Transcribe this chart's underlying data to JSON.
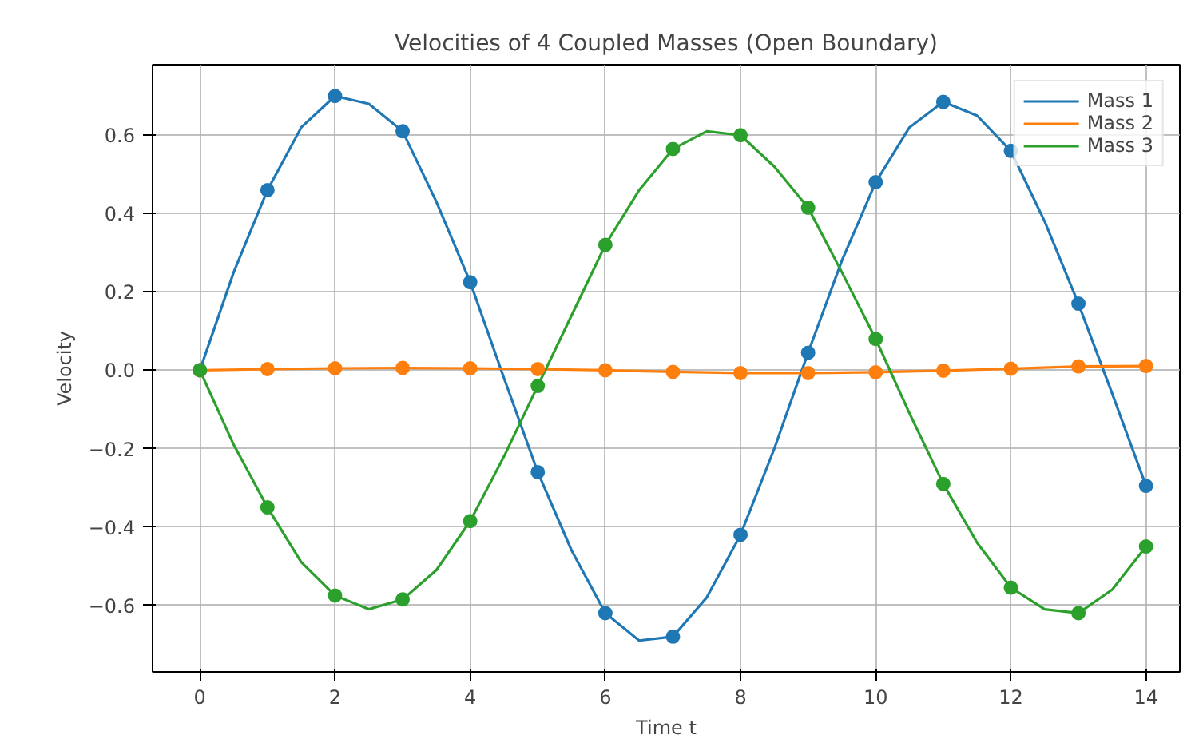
{
  "chart_data": {
    "type": "line",
    "title": "Velocities of 4 Coupled Masses (Open Boundary)",
    "xlabel": "Time t",
    "ylabel": "Velocity",
    "xlim": [
      -0.7,
      14.5
    ],
    "ylim": [
      -0.77,
      0.78
    ],
    "xticks": [
      0,
      2,
      4,
      6,
      8,
      10,
      12,
      14
    ],
    "yticks": [
      {
        "value": -0.6,
        "label": "−0.6"
      },
      {
        "value": -0.4,
        "label": "−0.4"
      },
      {
        "value": -0.2,
        "label": "−0.2"
      },
      {
        "value": 0,
        "label": "0.0"
      },
      0.2,
      0.4,
      0.6
    ],
    "grid": true,
    "legend": "top right",
    "series": [
      {
        "name": "Mass 1",
        "color": "#1f77b4",
        "x": [
          0,
          0.5,
          1,
          1.5,
          2,
          2.5,
          3,
          3.5,
          4,
          4.5,
          5,
          5.5,
          6,
          6.5,
          7,
          7.5,
          8,
          8.5,
          9,
          9.5,
          10,
          10.5,
          11,
          11.5,
          12,
          12.5,
          13,
          13.5,
          14
        ],
        "values": [
          0,
          0.25,
          0.46,
          0.62,
          0.7,
          0.68,
          0.61,
          0.43,
          0.225,
          -0.02,
          -0.26,
          -0.46,
          -0.62,
          -0.69,
          -0.68,
          -0.58,
          -0.42,
          -0.2,
          0.045,
          0.28,
          0.48,
          0.62,
          0.685,
          0.65,
          0.56,
          0.38,
          0.17,
          -0.06,
          -0.295
        ]
      },
      {
        "name": "Mass 2",
        "color": "#ff7f0e",
        "x": [
          0,
          1,
          2,
          3,
          4,
          5,
          6,
          7,
          8,
          9,
          10,
          11,
          12,
          13,
          14
        ],
        "values": [
          0,
          0.003,
          0.005,
          0.006,
          0.005,
          0.003,
          0,
          -0.004,
          -0.007,
          -0.007,
          -0.005,
          -0.001,
          0.004,
          0.01,
          0.011
        ]
      },
      {
        "name": "Mass 3",
        "color": "#2ca02c",
        "x": [
          0,
          0.5,
          1,
          1.5,
          2,
          2.5,
          3,
          3.5,
          4,
          4.5,
          5,
          5.5,
          6,
          6.5,
          7,
          7.5,
          8,
          8.5,
          9,
          9.5,
          10,
          10.5,
          11,
          11.5,
          12,
          12.5,
          13,
          13.5,
          14
        ],
        "values": [
          0,
          -0.19,
          -0.35,
          -0.49,
          -0.575,
          -0.61,
          -0.585,
          -0.51,
          -0.385,
          -0.22,
          -0.04,
          0.14,
          0.32,
          0.46,
          0.565,
          0.61,
          0.6,
          0.52,
          0.415,
          0.25,
          0.08,
          -0.11,
          -0.29,
          -0.44,
          -0.555,
          -0.61,
          -0.62,
          -0.56,
          -0.45
        ]
      },
      {
        "color": "#1f77b4",
        "type": "scatter",
        "marker": "circle",
        "x": [
          0,
          1,
          2,
          3,
          4,
          5,
          6,
          7,
          8,
          9,
          10,
          11,
          12,
          13,
          14
        ],
        "values": [
          0,
          0.46,
          0.7,
          0.61,
          0.225,
          -0.26,
          -0.62,
          -0.68,
          -0.42,
          0.045,
          0.48,
          0.685,
          0.56,
          0.17,
          -0.295
        ]
      },
      {
        "color": "#ff7f0e",
        "type": "scatter",
        "marker": "circle",
        "x": [
          0,
          1,
          2,
          3,
          4,
          5,
          6,
          7,
          8,
          9,
          10,
          11,
          12,
          13,
          14
        ],
        "values": [
          0,
          0.003,
          0.005,
          0.006,
          0.005,
          0.003,
          0,
          -0.004,
          -0.007,
          -0.007,
          -0.005,
          -0.001,
          0.004,
          0.01,
          0.011
        ]
      },
      {
        "color": "#2ca02c",
        "type": "scatter",
        "marker": "circle",
        "x": [
          0,
          1,
          2,
          3,
          4,
          5,
          6,
          7,
          8,
          9,
          10,
          11,
          12,
          13,
          14
        ],
        "values": [
          0,
          -0.35,
          -0.575,
          -0.585,
          -0.385,
          -0.04,
          0.32,
          0.565,
          0.6,
          0.415,
          0.08,
          -0.29,
          -0.555,
          -0.62,
          -0.45
        ]
      }
    ]
  }
}
